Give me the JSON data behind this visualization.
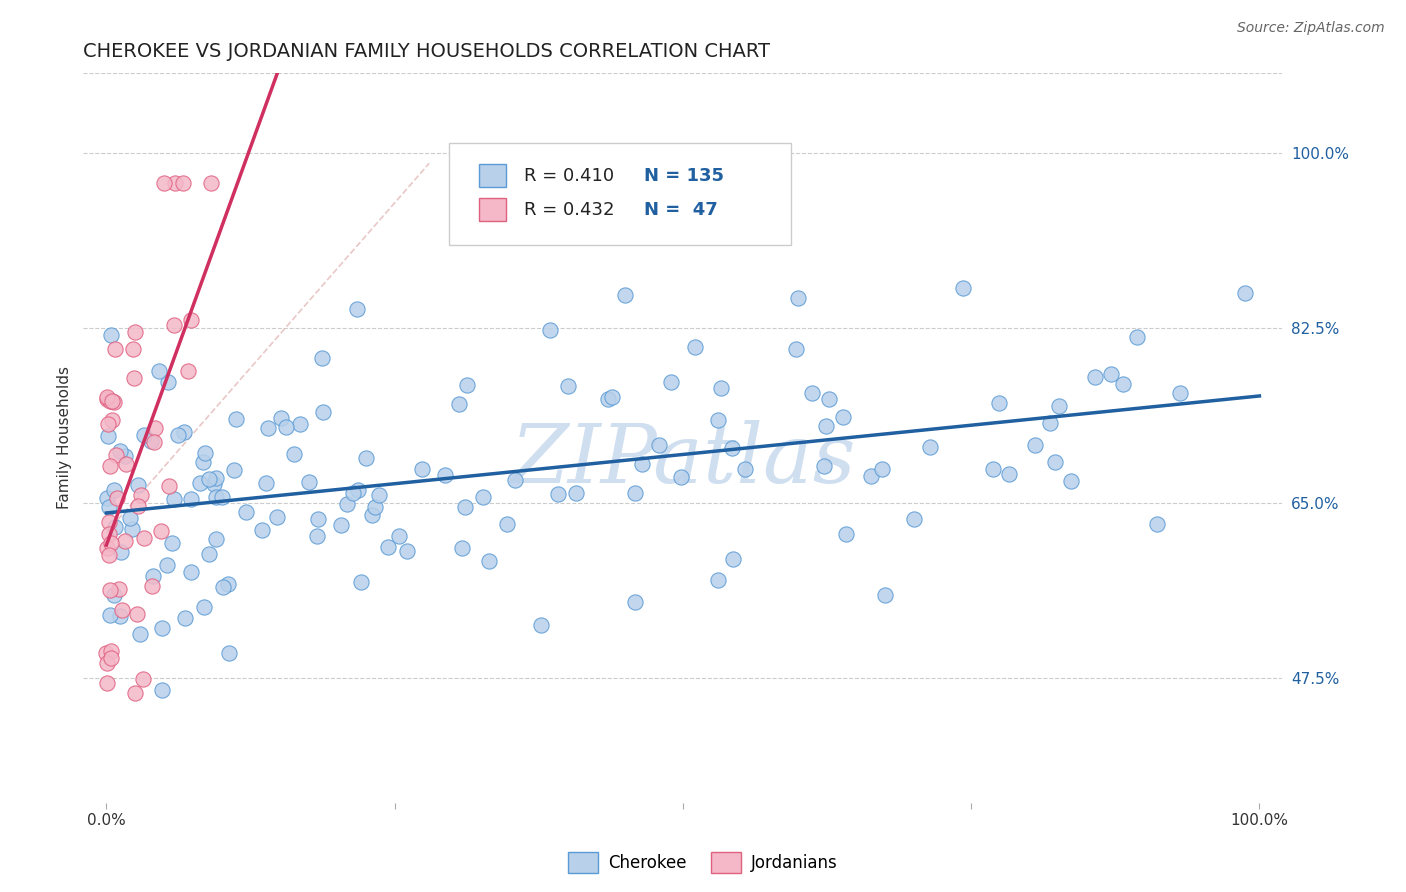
{
  "title": "CHEROKEE VS JORDANIAN FAMILY HOUSEHOLDS CORRELATION CHART",
  "source": "Source: ZipAtlas.com",
  "ylabel": "Family Households",
  "cherokee_R": 0.41,
  "cherokee_N": 135,
  "jordanian_R": 0.432,
  "jordanian_N": 47,
  "cherokee_color": "#b8d0ea",
  "cherokee_edge_color": "#5b9bd5",
  "cherokee_line_color": "#2060a0",
  "jordanian_color": "#f4b8c8",
  "jordanian_edge_color": "#e06080",
  "jordanian_line_color": "#d03060",
  "ref_line_color": "#e0b0b0",
  "background_color": "#ffffff",
  "watermark": "ZIPatlas",
  "watermark_color": "#d0dff0",
  "ytick_labels": [
    "47.5%",
    "65.0%",
    "82.5%",
    "100.0%"
  ],
  "ytick_values": [
    0.475,
    0.65,
    0.825,
    1.0
  ],
  "xlim": [
    -0.02,
    1.02
  ],
  "ylim": [
    0.35,
    1.08
  ],
  "title_fontsize": 14,
  "axis_label_fontsize": 11,
  "tick_fontsize": 11,
  "legend_fontsize": 13,
  "source_fontsize": 10,
  "legend_text_color": "#2060a0",
  "legend_rn_color": "#2060a0"
}
